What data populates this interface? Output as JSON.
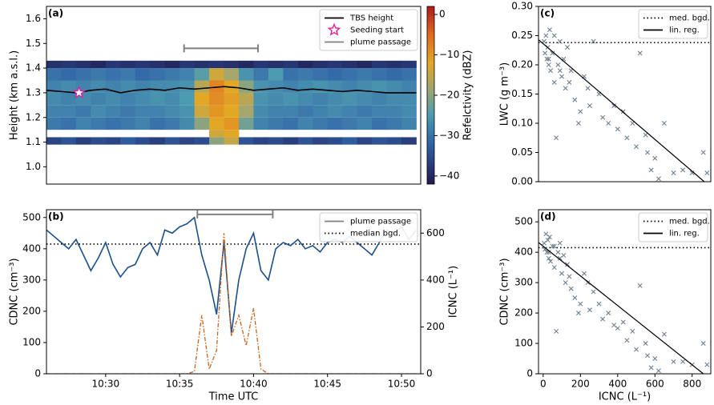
{
  "chart_data": [
    {
      "type": "heatmap",
      "label": "(a)",
      "ylabel": "Height (km a.s.l.)",
      "colorbar_label": "Refelctivity (dBZ)",
      "xlim": [
        626,
        651.3
      ],
      "ylim": [
        0.93,
        1.65
      ],
      "yticks": [
        {
          "value": 1.0,
          "label": "1.0"
        },
        1.1,
        1.2,
        1.3,
        1.4,
        1.5,
        1.6
      ],
      "zlim": [
        -42,
        2
      ],
      "zticks": [
        0,
        {
          "value": -10,
          "label": "−10"
        },
        {
          "value": -20,
          "label": "−20"
        },
        {
          "value": -30,
          "label": "−30"
        },
        {
          "value": -40,
          "label": "−40"
        }
      ],
      "colorscale": [
        [
          -42,
          "#211a4f"
        ],
        [
          -32,
          "#3162a8"
        ],
        [
          -25,
          "#4d9bb0"
        ],
        [
          -18,
          "#a4a66c"
        ],
        [
          -12,
          "#e3a726"
        ],
        [
          -5,
          "#e06a20"
        ],
        [
          2,
          "#b01a1a"
        ]
      ],
      "x_edges": [
        626,
        627,
        628,
        629,
        630,
        631,
        632,
        633,
        634,
        635,
        636,
        637,
        638,
        639,
        640,
        641,
        642,
        643,
        644,
        645,
        646,
        647,
        648,
        649,
        650,
        651
      ],
      "y_edges": [
        1.09,
        1.12,
        1.15,
        1.2,
        1.25,
        1.3,
        1.35,
        1.4,
        1.43
      ],
      "z": [
        [
          -36,
          -34,
          -37,
          -35,
          -36,
          -33,
          -35,
          -37,
          -34,
          -36,
          -35,
          -20,
          -15,
          -34,
          -36,
          -35,
          -37,
          -34,
          -36,
          -35,
          -33,
          -36,
          -34,
          -35,
          -37
        ],
        [
          null,
          null,
          null,
          null,
          null,
          null,
          null,
          null,
          null,
          null,
          null,
          -14,
          -12,
          null,
          null,
          null,
          null,
          null,
          null,
          null,
          null,
          null,
          null,
          null,
          null
        ],
        [
          -29,
          -30,
          -28,
          -29,
          -30,
          -29,
          -28,
          -30,
          -29,
          -27,
          -20,
          -12,
          -10,
          -22,
          -28,
          -29,
          -30,
          -28,
          -29,
          -30,
          -29,
          -28,
          -30,
          -29,
          -28
        ],
        [
          -28,
          -28,
          -29,
          -27,
          -28,
          -29,
          -28,
          -28,
          -27,
          -26,
          -14,
          -10,
          -12,
          -18,
          -27,
          -28,
          -28,
          -29,
          -28,
          -27,
          -28,
          -29,
          -28,
          -28,
          -27
        ],
        [
          -27,
          -28,
          -27,
          -28,
          -27,
          -28,
          -27,
          -26,
          -27,
          -25,
          -12,
          -9,
          -11,
          -16,
          -26,
          -27,
          -26,
          -27,
          -28,
          -27,
          -26,
          -27,
          -28,
          -27,
          -27
        ],
        [
          -28,
          -27,
          -28,
          -27,
          -28,
          -27,
          -28,
          -27,
          -27,
          -26,
          -16,
          -8,
          -12,
          -20,
          -26,
          -27,
          -28,
          -27,
          -26,
          -27,
          -28,
          -27,
          -26,
          -27,
          -28
        ],
        [
          -30,
          -31,
          -30,
          -29,
          -30,
          -29,
          -31,
          -30,
          -29,
          -28,
          -24,
          -14,
          -18,
          -26,
          -29,
          -25,
          -30,
          -29,
          -30,
          -31,
          -30,
          -29,
          -30,
          -31,
          -30
        ],
        [
          -39,
          -38,
          -39,
          -40,
          -38,
          -39,
          -38,
          -39,
          -40,
          -38,
          -39,
          -38,
          -39,
          -40,
          -38,
          -39,
          -38,
          -40,
          -39,
          -38,
          -39,
          -40,
          -38,
          -39,
          -38
        ]
      ],
      "x": [
        626,
        627,
        628,
        629,
        630,
        631,
        632,
        633,
        634,
        635,
        636,
        637,
        638,
        639,
        640,
        641,
        642,
        643,
        644,
        645,
        646,
        647,
        648,
        649,
        650,
        651
      ],
      "series": [
        {
          "name": "TBS height",
          "color": "#000000",
          "linestyle": "solid",
          "values": [
            1.31,
            1.305,
            1.3,
            1.31,
            1.315,
            1.3,
            1.31,
            1.315,
            1.31,
            1.32,
            1.315,
            1.32,
            1.325,
            1.32,
            1.31,
            1.315,
            1.32,
            1.31,
            1.315,
            1.31,
            1.305,
            1.31,
            1.305,
            1.3,
            1.3,
            1.3
          ]
        }
      ],
      "markers": [
        {
          "name": "Seeding start",
          "x": 628.2,
          "y": 1.3,
          "color": "#e0209a"
        }
      ],
      "plume": {
        "name": "plume passage",
        "x": [
          635.3,
          640.3
        ],
        "y": 1.48,
        "color": "#808080"
      }
    },
    {
      "type": "line",
      "label": "(b)",
      "xlabel": "Time UTC",
      "ylabel": "CDNC (cm⁻³)",
      "y2label": "ICNC (L⁻¹)",
      "ycolor": "#1a4f8a",
      "y2color": "#c8641e",
      "xlim": [
        626,
        651.3
      ],
      "ylim": [
        0,
        525
      ],
      "y2lim": [
        0,
        700
      ],
      "xticks": [
        {
          "value": 630,
          "label": "10:30"
        },
        {
          "value": 635,
          "label": "10:35"
        },
        {
          "value": 640,
          "label": "10:40"
        },
        {
          "value": 645,
          "label": "10:45"
        },
        {
          "value": 650,
          "label": "10:50"
        }
      ],
      "yticks": [
        0,
        100,
        200,
        300,
        400,
        500
      ],
      "y2ticks": [
        0,
        200,
        400,
        600
      ],
      "x": [
        626,
        626.5,
        627,
        627.5,
        628,
        628.5,
        629,
        629.5,
        630,
        630.5,
        631,
        631.5,
        632,
        632.5,
        633,
        633.5,
        634,
        634.5,
        635,
        635.5,
        636,
        636.5,
        637,
        637.5,
        638,
        638.5,
        639,
        639.5,
        640,
        640.5,
        641,
        641.5,
        642,
        642.5,
        643,
        643.5,
        644,
        644.5,
        645,
        645.5,
        646,
        646.5,
        647,
        647.5,
        648,
        648.5,
        649,
        649.5,
        650,
        650.5,
        651
      ],
      "series": [
        {
          "color": "#1a4f8a",
          "linestyle": "solid",
          "values": [
            460,
            440,
            420,
            400,
            430,
            380,
            330,
            370,
            420,
            350,
            310,
            340,
            350,
            400,
            420,
            380,
            460,
            450,
            470,
            480,
            500,
            380,
            300,
            190,
            420,
            130,
            300,
            400,
            450,
            330,
            300,
            400,
            420,
            410,
            430,
            400,
            410,
            390,
            420,
            430,
            420,
            440,
            420,
            400,
            380,
            420,
            460,
            450,
            470,
            430,
            460
          ]
        },
        {
          "color": "#c8641e",
          "linestyle": "dashdot",
          "axis": "y2",
          "values": [
            0,
            0,
            0,
            0,
            0,
            0,
            0,
            0,
            0,
            0,
            0,
            0,
            0,
            0,
            0,
            0,
            0,
            0,
            0,
            0,
            10,
            250,
            20,
            100,
            600,
            160,
            250,
            120,
            280,
            20,
            0,
            0,
            0,
            0,
            0,
            0,
            0,
            0,
            0,
            0,
            0,
            0,
            0,
            0,
            0,
            0,
            0,
            0,
            0,
            0,
            0
          ]
        }
      ],
      "plume": {
        "name": "plume passage",
        "x": [
          636.2,
          641.3
        ],
        "y": 510,
        "color": "#808080"
      },
      "reference_lines": [
        {
          "name": "median bgd.",
          "value": 415,
          "color": "#000000",
          "linestyle": "dotted"
        }
      ]
    },
    {
      "type": "scatter",
      "label": "(c)",
      "ylabel": "LWC (g m⁻³)",
      "xlim": [
        -25,
        900
      ],
      "ylim": [
        0,
        0.3
      ],
      "yticks": [
        {
          "value": 0,
          "label": "0.00"
        },
        0.05,
        {
          "value": 0.1,
          "label": "0.10"
        },
        0.15,
        {
          "value": 0.2,
          "label": "0.20"
        },
        0.25,
        {
          "value": 0.3,
          "label": "0.30"
        }
      ],
      "points": {
        "color": "#708090",
        "x": [
          5,
          10,
          15,
          20,
          25,
          30,
          35,
          40,
          50,
          60,
          70,
          80,
          90,
          100,
          110,
          120,
          130,
          150,
          170,
          200,
          220,
          250,
          270,
          300,
          320,
          350,
          380,
          400,
          430,
          450,
          480,
          500,
          520,
          550,
          560,
          580,
          600,
          620,
          650,
          700,
          750,
          800,
          860,
          880,
          30,
          60,
          90,
          140,
          190,
          240
        ],
        "y": [
          0.24,
          0.22,
          0.25,
          0.21,
          0.23,
          0.2,
          0.26,
          0.19,
          0.22,
          0.17,
          0.075,
          0.2,
          0.24,
          0.18,
          0.21,
          0.16,
          0.23,
          0.19,
          0.14,
          0.12,
          0.18,
          0.13,
          0.24,
          0.15,
          0.11,
          0.1,
          0.13,
          0.09,
          0.12,
          0.075,
          0.1,
          0.06,
          0.22,
          0.08,
          0.05,
          0.02,
          0.04,
          0.005,
          0.1,
          0.015,
          0.02,
          0.015,
          0.05,
          0.015,
          0.21,
          0.25,
          0.19,
          0.17,
          0.1,
          0.16
        ]
      },
      "reference_lines": [
        {
          "name": "med. bgd.",
          "value": 0.238,
          "color": "#000000",
          "linestyle": "dotted"
        }
      ],
      "fit": {
        "name": "lin. reg.",
        "x": [
          -25,
          865
        ],
        "y": [
          0.243,
          0
        ],
        "color": "#000000"
      }
    },
    {
      "type": "scatter",
      "label": "(d)",
      "xlabel": "ICNC (L⁻¹)",
      "ylabel": "CDNC (cm⁻³)",
      "xlim": [
        -25,
        900
      ],
      "ylim": [
        0,
        540
      ],
      "xticks": [
        0,
        200,
        400,
        600,
        800
      ],
      "yticks": [
        0,
        100,
        200,
        300,
        400,
        500
      ],
      "points": {
        "color": "#708090",
        "x": [
          5,
          10,
          15,
          20,
          25,
          30,
          35,
          40,
          50,
          60,
          70,
          80,
          90,
          100,
          110,
          120,
          130,
          150,
          170,
          200,
          220,
          250,
          270,
          300,
          320,
          350,
          380,
          400,
          430,
          450,
          480,
          500,
          520,
          550,
          560,
          580,
          600,
          620,
          650,
          700,
          750,
          800,
          860,
          880,
          30,
          60,
          90,
          140,
          190,
          240
        ],
        "y": [
          430,
          410,
          460,
          400,
          440,
          380,
          450,
          370,
          420,
          350,
          140,
          400,
          430,
          330,
          390,
          300,
          360,
          280,
          250,
          230,
          330,
          210,
          270,
          230,
          180,
          200,
          160,
          150,
          170,
          110,
          140,
          80,
          290,
          100,
          60,
          20,
          50,
          10,
          130,
          40,
          40,
          30,
          100,
          30,
          400,
          420,
          380,
          320,
          200,
          300
        ]
      },
      "reference_lines": [
        {
          "name": "med. bgd.",
          "value": 415,
          "color": "#000000",
          "linestyle": "dotted"
        }
      ],
      "fit": {
        "name": "lin. reg.",
        "x": [
          -25,
          860
        ],
        "y": [
          432,
          0
        ],
        "color": "#000000"
      }
    }
  ]
}
